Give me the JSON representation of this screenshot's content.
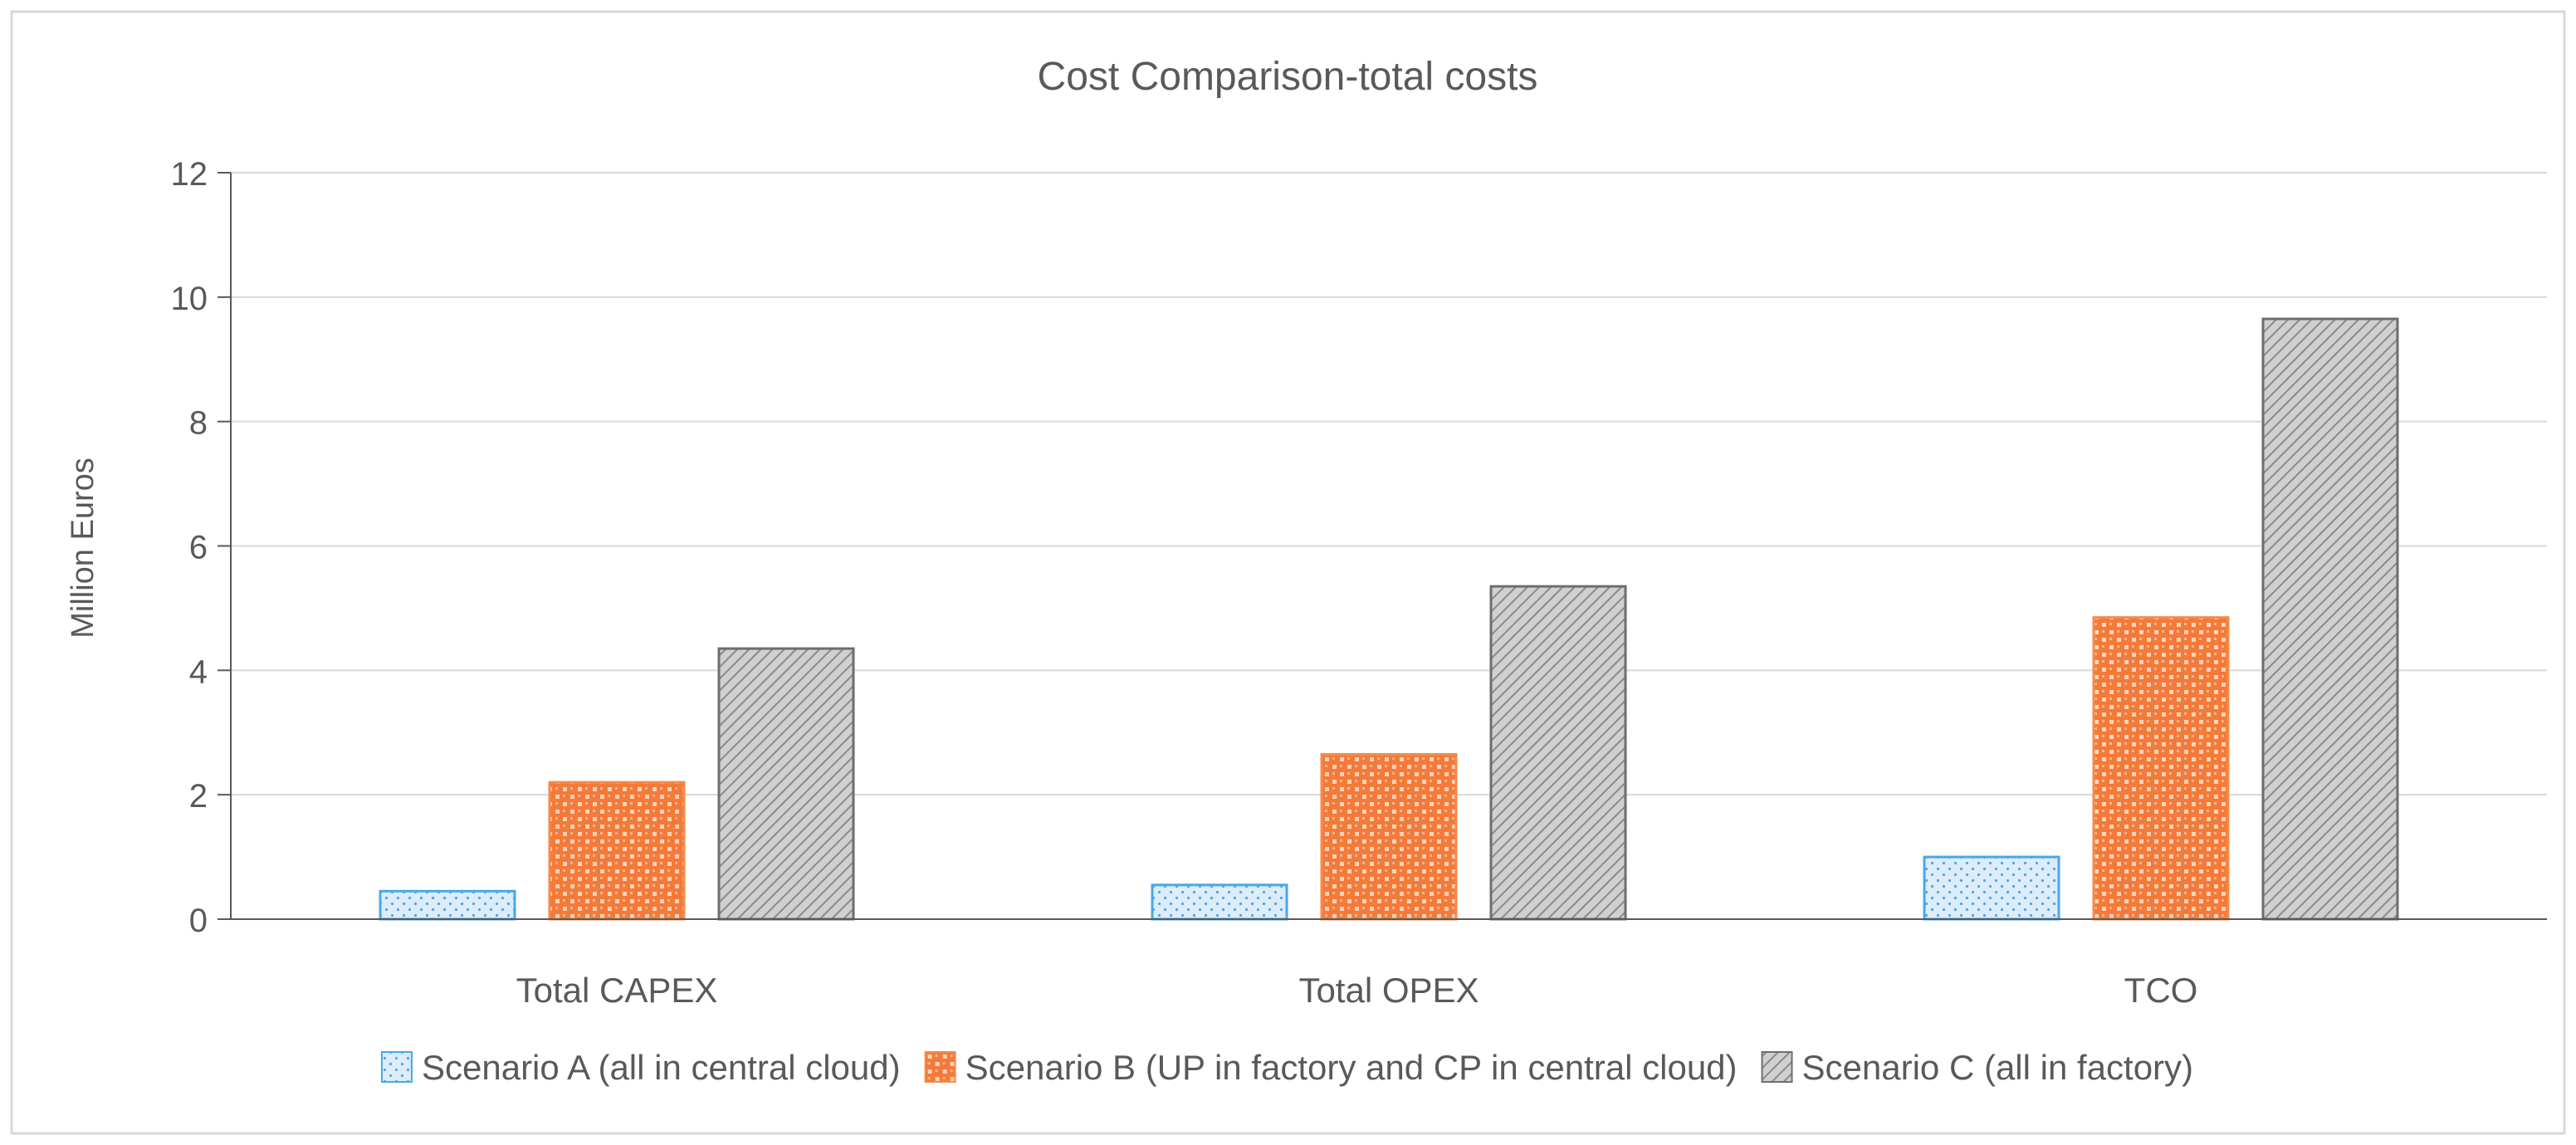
{
  "chart_data": {
    "type": "bar",
    "title": "Cost Comparison-total costs",
    "xlabel": "",
    "ylabel": "Million Euros",
    "ylim": [
      0,
      12
    ],
    "yticks": [
      0,
      2,
      4,
      6,
      8,
      10,
      12
    ],
    "grid": true,
    "legend_position": "bottom",
    "categories": [
      "Total CAPEX",
      "Total OPEX",
      "TCO"
    ],
    "series": [
      {
        "name": "Scenario A (all in central cloud)",
        "values": [
          0.45,
          0.55,
          1.0
        ],
        "color": "#4aa8e8",
        "fill": "#dcecf8",
        "pattern": "dots"
      },
      {
        "name": "Scenario B (UP in factory and CP in central cloud)",
        "values": [
          2.2,
          2.65,
          4.85
        ],
        "color": "#f58a4a",
        "fill": "#f47a3a",
        "pattern": "grid"
      },
      {
        "name": "Scenario C (all in factory)",
        "values": [
          4.35,
          5.35,
          9.65
        ],
        "color": "#6e6e6e",
        "fill": "#c9c9c9",
        "pattern": "hatch"
      }
    ]
  }
}
